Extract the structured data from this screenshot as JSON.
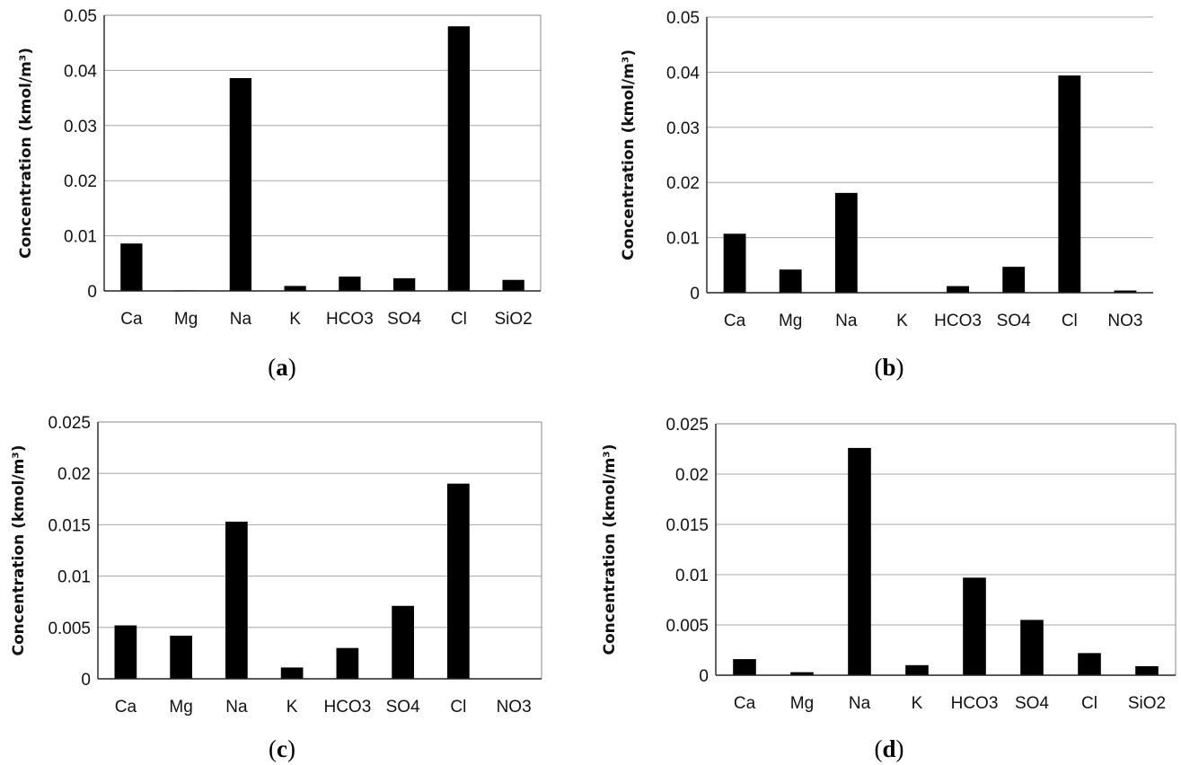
{
  "chart_data": [
    {
      "type": "bar",
      "panel": "a",
      "caption_letter": "a",
      "ylabel": "Concentration (kmol/m³)",
      "categories": [
        "Ca",
        "Mg",
        "Na",
        "K",
        "HCO3",
        "SO4",
        "Cl",
        "SiO2"
      ],
      "values": [
        0.0086,
        0.0001,
        0.0386,
        0.0009,
        0.0026,
        0.0023,
        0.048,
        0.002
      ],
      "ylim": [
        0,
        0.05
      ],
      "yticks": [
        "0",
        "0.01",
        "0.02",
        "0.03",
        "0.04",
        "0.05"
      ],
      "grid": true,
      "legend": "none"
    },
    {
      "type": "bar",
      "panel": "b",
      "caption_letter": "b",
      "ylabel": "Concentration (kmol/m³)",
      "categories": [
        "Ca",
        "Mg",
        "Na",
        "K",
        "HCO3",
        "SO4",
        "Cl",
        "NO3"
      ],
      "values": [
        0.0107,
        0.0042,
        0.0181,
        0.0,
        0.0012,
        0.0047,
        0.0394,
        0.0004
      ],
      "ylim": [
        0,
        0.05
      ],
      "yticks": [
        "0",
        "0.01",
        "0.02",
        "0.03",
        "0.04",
        "0.05"
      ],
      "grid": true,
      "legend": "none"
    },
    {
      "type": "bar",
      "panel": "c",
      "caption_letter": "c",
      "ylabel": "Concentration (kmol/m³)",
      "categories": [
        "Ca",
        "Mg",
        "Na",
        "K",
        "HCO3",
        "SO4",
        "Cl",
        "NO3"
      ],
      "values": [
        0.0052,
        0.0042,
        0.0153,
        0.0011,
        0.003,
        0.0071,
        0.019,
        0.0
      ],
      "ylim": [
        0,
        0.025
      ],
      "yticks": [
        "0",
        "0.005",
        "0.01",
        "0.015",
        "0.02",
        "0.025"
      ],
      "grid": true,
      "legend": "none"
    },
    {
      "type": "bar",
      "panel": "d",
      "caption_letter": "d",
      "ylabel": "Concentration (kmol/m³)",
      "categories": [
        "Ca",
        "Mg",
        "Na",
        "K",
        "HCO3",
        "SO4",
        "Cl",
        "SiO2"
      ],
      "values": [
        0.0016,
        0.0003,
        0.0226,
        0.001,
        0.0097,
        0.0055,
        0.0022,
        0.0009
      ],
      "ylim": [
        0,
        0.025
      ],
      "yticks": [
        "0",
        "0.005",
        "0.01",
        "0.015",
        "0.02",
        "0.025"
      ],
      "grid": true,
      "legend": "none"
    }
  ]
}
